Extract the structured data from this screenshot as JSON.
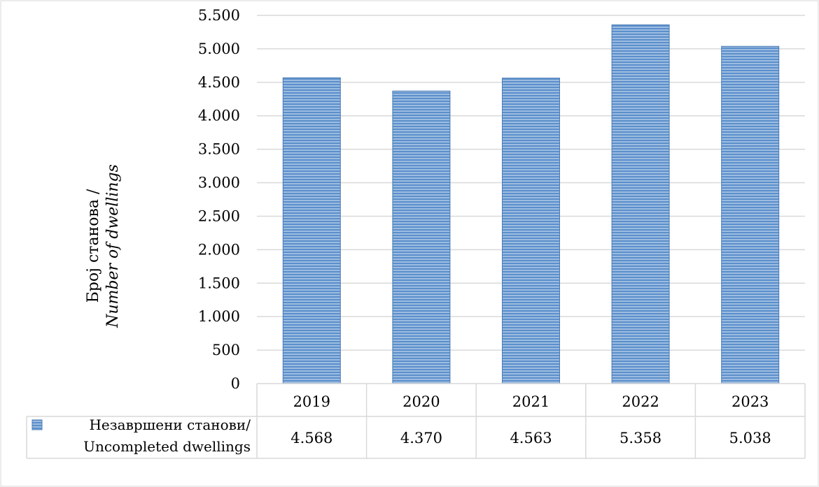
{
  "chart_data": {
    "type": "bar",
    "categories": [
      "2019",
      "2020",
      "2021",
      "2022",
      "2023"
    ],
    "series": [
      {
        "name": "Незавршени станови/ Uncompleted dwellings",
        "name_line1": "Незавршени станови/",
        "name_line2": "Uncompleted dwellings",
        "values": [
          4568,
          4370,
          4563,
          5358,
          5038
        ],
        "value_labels": [
          "4.568",
          "4.370",
          "4.563",
          "5.358",
          "5.038"
        ],
        "color": "#4f81bd"
      }
    ],
    "ylabel_line1": "Број станова /",
    "ylabel_line2": "Number of dwellings",
    "ylim": [
      0,
      5500
    ],
    "yticks": [
      0,
      500,
      1000,
      1500,
      2000,
      2500,
      3000,
      3500,
      4000,
      4500,
      5000,
      5500
    ],
    "ytick_labels": [
      "0",
      "500",
      "1.000",
      "1.500",
      "2.000",
      "2.500",
      "3.000",
      "3.500",
      "4.000",
      "4.500",
      "5.000",
      "5.500"
    ],
    "grid": true,
    "legend": "data-table"
  }
}
